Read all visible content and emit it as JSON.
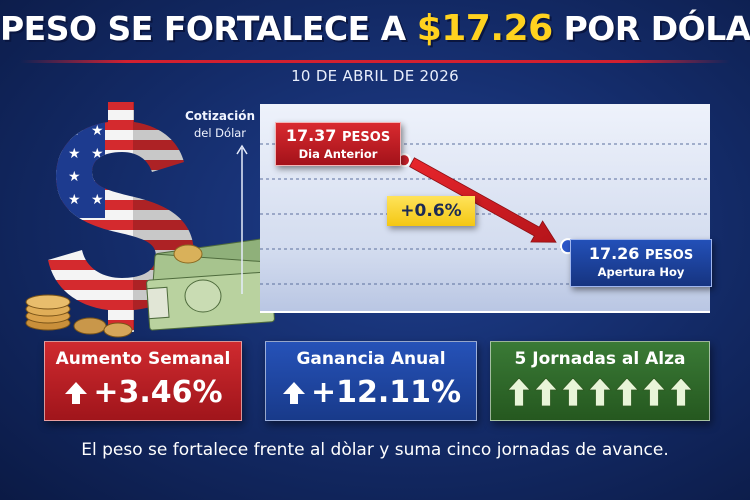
{
  "headline": {
    "part1": "PESO SE FORTALECE A ",
    "highlight": "$17.26",
    "part2": " POR DÓLAR"
  },
  "date": "10 DE ABRIL DE 2026",
  "chart_data": {
    "type": "line",
    "ylabel": "Cotización del Dólar",
    "points": [
      {
        "label": "Dia Anterior",
        "value": 17.37,
        "unit": "PESOS"
      },
      {
        "label": "Apertura Hoy",
        "value": 17.26,
        "unit": "PESOS"
      }
    ],
    "change_label": "+0.6%",
    "grid": true
  },
  "ylabel": {
    "line1": "Cotización",
    "line2": "del Dólar"
  },
  "callouts": {
    "prev": {
      "value": "17.37",
      "unit": "PESOS",
      "label": "Dia Anterior"
    },
    "now": {
      "value": "17.26",
      "unit": "PESOS",
      "label": "Apertura Hoy"
    },
    "change": "+0.6%"
  },
  "cards": [
    {
      "label": "Aumento Semanal",
      "value": "+3.46%",
      "color": "#b81f25"
    },
    {
      "label": "Ganancia Anual",
      "value": "+12.11%",
      "color": "#1e449e"
    },
    {
      "label": "5 Jornadas al Alza",
      "arrow_count": 7,
      "color": "#2f6a2b"
    }
  ],
  "footer": "El peso se fortalece frente al dòlar y suma cinco jornadas de avance.",
  "colors": {
    "accent_yellow": "#ffd21f",
    "red": "#c9252b",
    "blue": "#1f4aa8",
    "green": "#2f6a2b",
    "background": "#132a66"
  },
  "icons": [
    "dollar-sign-flag-icon",
    "money-stack-icon",
    "coin-stack-icon",
    "up-arrow-icon"
  ]
}
